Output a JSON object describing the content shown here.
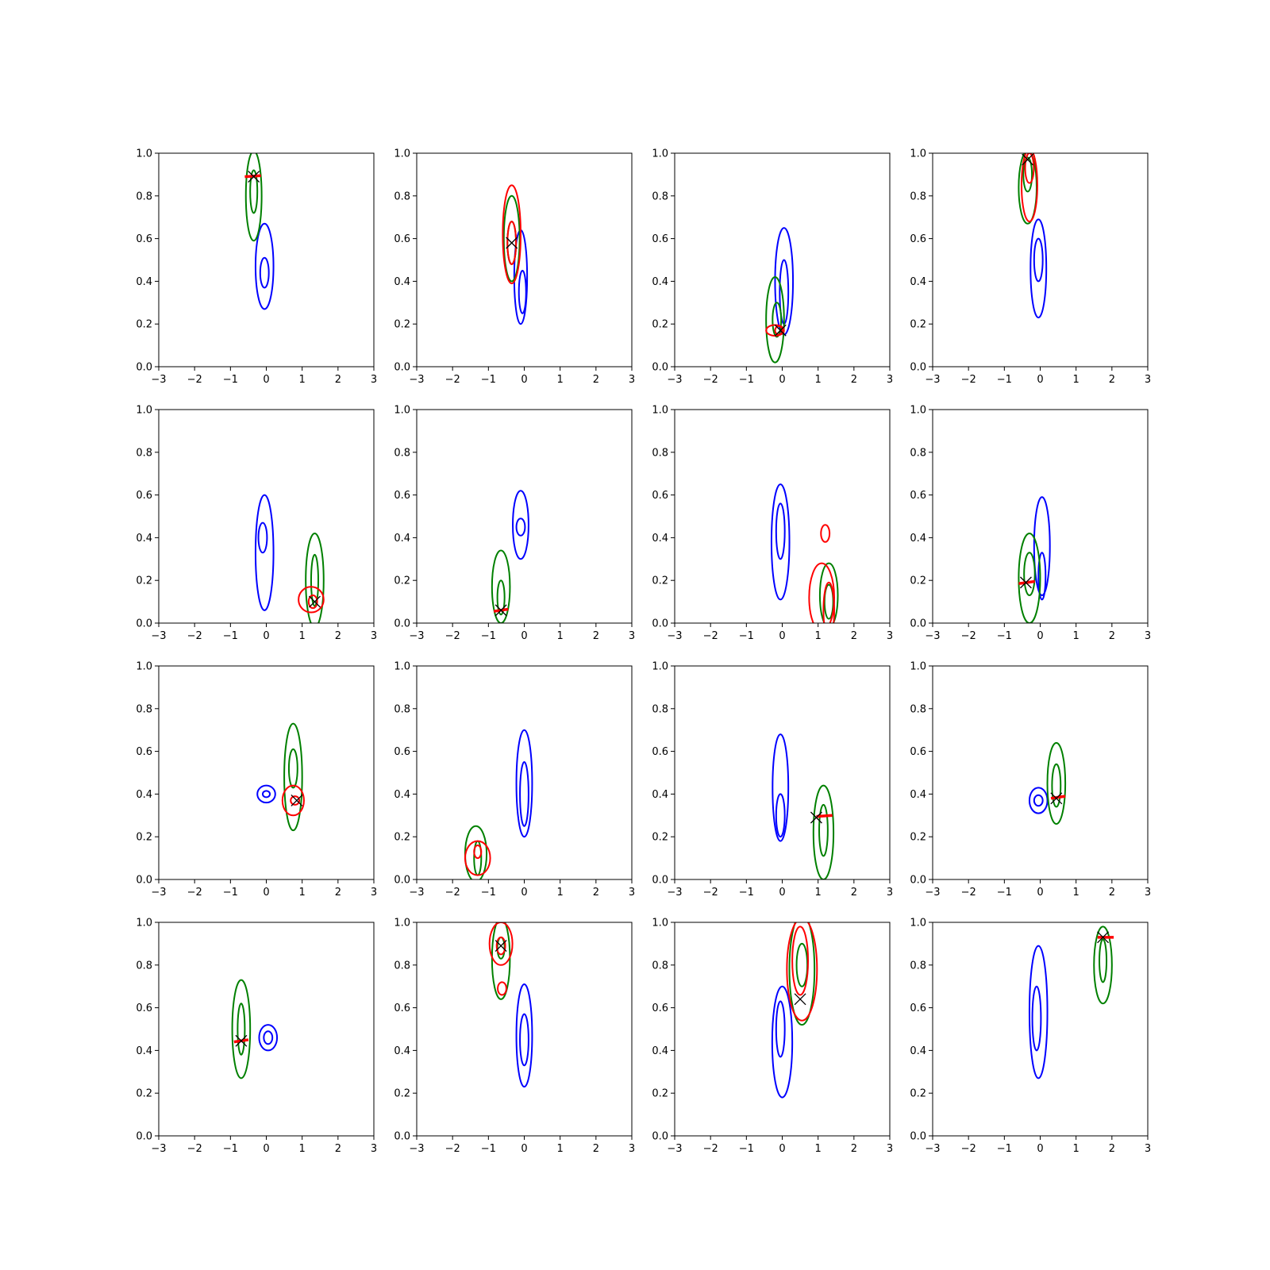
{
  "figure": {
    "rows": 4,
    "cols": 4
  },
  "chart_data": {
    "type": "contour",
    "description_units": "x in data units (axis -3..3), y in data units (axis 0..1); contours are approximate ellipse-like level curves (center, half-width, half-height)",
    "xlim": [
      -3,
      3
    ],
    "ylim": [
      0,
      1
    ],
    "xticks": [
      "−3",
      "−2",
      "−1",
      "0",
      "1",
      "2",
      "3"
    ],
    "yticks": [
      "0.0",
      "0.2",
      "0.4",
      "0.6",
      "0.8",
      "1.0"
    ],
    "xtick_values": [
      -3,
      -2,
      -1,
      0,
      1,
      2,
      3
    ],
    "ytick_values": [
      0.0,
      0.2,
      0.4,
      0.6,
      0.8,
      1.0
    ],
    "colors": {
      "blue": "#0000ff",
      "green": "#008000",
      "red": "#ff0000",
      "marker": "#000000"
    },
    "panels": [
      {
        "blue": [
          [
            -0.05,
            0.47,
            0.25,
            0.2
          ],
          [
            -0.05,
            0.44,
            0.12,
            0.07
          ]
        ],
        "green": [
          [
            -0.35,
            0.8,
            0.22,
            0.21
          ],
          [
            -0.35,
            0.82,
            0.1,
            0.1
          ]
        ],
        "red": [],
        "marker": [
          -0.35,
          0.89
        ],
        "redline": [
          [
            -0.6,
            0.89
          ],
          [
            -0.15,
            0.895
          ]
        ]
      },
      {
        "blue": [
          [
            -0.1,
            0.42,
            0.18,
            0.22
          ],
          [
            -0.05,
            0.35,
            0.1,
            0.1
          ]
        ],
        "green": [
          [
            -0.35,
            0.6,
            0.22,
            0.2
          ],
          [
            -0.35,
            0.58,
            0.12,
            0.1
          ]
        ],
        "red": [
          [
            -0.35,
            0.62,
            0.25,
            0.23
          ],
          [
            -0.35,
            0.58,
            0.12,
            0.1
          ]
        ],
        "marker": [
          -0.35,
          0.58
        ],
        "redline": []
      },
      {
        "blue": [
          [
            0.05,
            0.4,
            0.25,
            0.25
          ],
          [
            0.05,
            0.35,
            0.12,
            0.15
          ]
        ],
        "green": [
          [
            -0.2,
            0.22,
            0.25,
            0.2
          ],
          [
            -0.15,
            0.22,
            0.12,
            0.08
          ]
        ],
        "red": [
          [
            -0.2,
            0.17,
            0.25,
            0.025
          ],
          [
            -0.1,
            0.17,
            0.1,
            0.02
          ]
        ],
        "marker": [
          -0.05,
          0.17
        ],
        "redline": []
      },
      {
        "blue": [
          [
            -0.05,
            0.46,
            0.22,
            0.23
          ],
          [
            -0.05,
            0.5,
            0.12,
            0.1
          ]
        ],
        "green": [
          [
            -0.35,
            0.84,
            0.25,
            0.17
          ],
          [
            -0.35,
            0.9,
            0.12,
            0.08
          ]
        ],
        "red": [
          [
            -0.3,
            0.85,
            0.22,
            0.17
          ],
          [
            -0.3,
            0.93,
            0.12,
            0.07
          ]
        ],
        "marker": [
          -0.35,
          0.97
        ],
        "redline": []
      },
      {
        "blue": [
          [
            -0.05,
            0.33,
            0.25,
            0.27
          ],
          [
            -0.1,
            0.4,
            0.12,
            0.07
          ]
        ],
        "green": [
          [
            1.35,
            0.2,
            0.25,
            0.22
          ],
          [
            1.35,
            0.2,
            0.1,
            0.12
          ]
        ],
        "red": [
          [
            1.25,
            0.11,
            0.35,
            0.06
          ],
          [
            1.3,
            0.1,
            0.12,
            0.03
          ]
        ],
        "marker": [
          1.35,
          0.1
        ],
        "redline": []
      },
      {
        "blue": [
          [
            -0.1,
            0.46,
            0.22,
            0.16
          ],
          [
            -0.1,
            0.45,
            0.12,
            0.04
          ]
        ],
        "green": [
          [
            -0.65,
            0.17,
            0.25,
            0.17
          ],
          [
            -0.65,
            0.12,
            0.1,
            0.08
          ]
        ],
        "red": [],
        "marker": [
          -0.65,
          0.06
        ],
        "redline": [
          [
            -0.85,
            0.055
          ],
          [
            -0.45,
            0.065
          ]
        ]
      },
      {
        "blue": [
          [
            -0.05,
            0.38,
            0.25,
            0.27
          ],
          [
            -0.05,
            0.43,
            0.12,
            0.13
          ]
        ],
        "green": [
          [
            1.3,
            0.13,
            0.25,
            0.15
          ],
          [
            1.3,
            0.1,
            0.12,
            0.08
          ]
        ],
        "red": [
          [
            1.1,
            0.12,
            0.35,
            0.16
          ],
          [
            1.3,
            0.06,
            0.15,
            0.13
          ],
          [
            1.2,
            0.42,
            0.12,
            0.04
          ]
        ],
        "marker": null,
        "redline": []
      },
      {
        "blue": [
          [
            0.05,
            0.36,
            0.22,
            0.23
          ],
          [
            0.05,
            0.22,
            0.1,
            0.11
          ]
        ],
        "green": [
          [
            -0.3,
            0.21,
            0.3,
            0.21
          ],
          [
            -0.3,
            0.23,
            0.15,
            0.1
          ]
        ],
        "red": [],
        "marker": [
          -0.4,
          0.19
        ],
        "redline": [
          [
            -0.6,
            0.185
          ],
          [
            -0.15,
            0.195
          ]
        ]
      },
      {
        "blue": [
          [
            0.0,
            0.4,
            0.25,
            0.04
          ],
          [
            0.0,
            0.4,
            0.1,
            0.015
          ]
        ],
        "green": [
          [
            0.75,
            0.48,
            0.25,
            0.25
          ],
          [
            0.75,
            0.52,
            0.12,
            0.09
          ]
        ],
        "red": [
          [
            0.75,
            0.37,
            0.3,
            0.07
          ],
          [
            0.8,
            0.37,
            0.12,
            0.02
          ]
        ],
        "marker": [
          0.85,
          0.37
        ],
        "redline": []
      },
      {
        "blue": [
          [
            0.0,
            0.45,
            0.22,
            0.25
          ],
          [
            0.0,
            0.4,
            0.12,
            0.15
          ]
        ],
        "green": [
          [
            -1.35,
            0.12,
            0.3,
            0.13
          ],
          [
            -1.3,
            0.1,
            0.1,
            0.08
          ]
        ],
        "red": [
          [
            -1.3,
            0.1,
            0.35,
            0.08
          ],
          [
            -1.3,
            0.13,
            0.1,
            0.03
          ]
        ],
        "marker": null,
        "redline": []
      },
      {
        "blue": [
          [
            -0.05,
            0.43,
            0.22,
            0.25
          ],
          [
            -0.05,
            0.3,
            0.12,
            0.1
          ]
        ],
        "green": [
          [
            1.15,
            0.22,
            0.28,
            0.22
          ],
          [
            1.15,
            0.23,
            0.12,
            0.12
          ]
        ],
        "red": [],
        "marker": [
          0.95,
          0.29
        ],
        "redline": [
          [
            0.95,
            0.295
          ],
          [
            1.4,
            0.3
          ]
        ]
      },
      {
        "blue": [
          [
            -0.05,
            0.37,
            0.25,
            0.06
          ],
          [
            -0.05,
            0.37,
            0.12,
            0.025
          ]
        ],
        "green": [
          [
            0.45,
            0.45,
            0.25,
            0.19
          ],
          [
            0.45,
            0.44,
            0.12,
            0.1
          ]
        ],
        "red": [],
        "marker": [
          0.45,
          0.38
        ],
        "redline": [
          [
            0.3,
            0.38
          ],
          [
            0.7,
            0.39
          ]
        ]
      },
      {
        "blue": [
          [
            0.05,
            0.46,
            0.25,
            0.06
          ],
          [
            0.05,
            0.46,
            0.12,
            0.03
          ]
        ],
        "green": [
          [
            -0.7,
            0.5,
            0.25,
            0.23
          ],
          [
            -0.7,
            0.5,
            0.1,
            0.12
          ]
        ],
        "red": [],
        "marker": [
          -0.7,
          0.445
        ],
        "redline": [
          [
            -0.9,
            0.44
          ],
          [
            -0.5,
            0.45
          ]
        ]
      },
      {
        "blue": [
          [
            0.0,
            0.47,
            0.22,
            0.24
          ],
          [
            0.0,
            0.45,
            0.12,
            0.12
          ]
        ],
        "green": [
          [
            -0.65,
            0.83,
            0.25,
            0.19
          ],
          [
            -0.65,
            0.88,
            0.1,
            0.05
          ]
        ],
        "red": [
          [
            -0.65,
            0.9,
            0.32,
            0.1
          ],
          [
            -0.65,
            0.89,
            0.12,
            0.04
          ],
          [
            -0.62,
            0.69,
            0.12,
            0.03
          ]
        ],
        "marker": [
          -0.65,
          0.89
        ],
        "redline": []
      },
      {
        "blue": [
          [
            0.0,
            0.44,
            0.28,
            0.26
          ],
          [
            -0.05,
            0.5,
            0.12,
            0.13
          ]
        ],
        "green": [
          [
            0.55,
            0.78,
            0.35,
            0.26
          ],
          [
            0.55,
            0.8,
            0.15,
            0.1
          ]
        ],
        "red": [
          [
            0.55,
            0.78,
            0.42,
            0.24
          ],
          [
            0.5,
            0.82,
            0.22,
            0.16
          ]
        ],
        "marker": [
          0.5,
          0.64
        ],
        "redline": []
      },
      {
        "blue": [
          [
            -0.05,
            0.58,
            0.25,
            0.31
          ],
          [
            -0.1,
            0.55,
            0.12,
            0.15
          ]
        ],
        "green": [
          [
            1.75,
            0.8,
            0.25,
            0.18
          ],
          [
            1.75,
            0.82,
            0.1,
            0.1
          ]
        ],
        "red": [],
        "marker": [
          1.75,
          0.93
        ],
        "redline": [
          [
            1.6,
            0.93
          ],
          [
            2.05,
            0.93
          ]
        ]
      }
    ]
  }
}
